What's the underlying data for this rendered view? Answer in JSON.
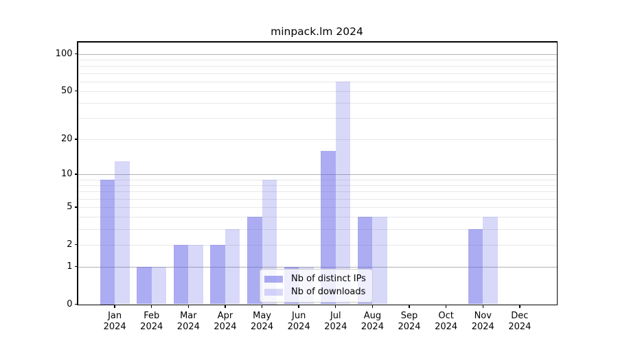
{
  "chart_data": {
    "type": "bar",
    "title": "minpack.lm 2024",
    "xlabel": "",
    "ylabel": "",
    "categories": [
      "Jan",
      "Feb",
      "Mar",
      "Apr",
      "May",
      "Jun",
      "Jul",
      "Aug",
      "Sep",
      "Oct",
      "Nov",
      "Dec"
    ],
    "year": "2024",
    "series": [
      {
        "name": "Nb of distinct IPs",
        "slug": "distinct-ips",
        "color": "rgba(90,90,230,0.5)",
        "values": [
          9,
          1,
          2,
          2,
          4,
          1,
          16,
          4,
          0,
          0,
          3,
          0
        ]
      },
      {
        "name": "Nb of downloads",
        "slug": "downloads",
        "color": "rgba(90,90,230,0.24)",
        "values": [
          13,
          1,
          2,
          3,
          9,
          1,
          60,
          4,
          0,
          0,
          4,
          0
        ]
      }
    ],
    "yscale": "log1p",
    "ylim": [
      0,
      125
    ],
    "yticks": [
      0,
      1,
      2,
      5,
      10,
      20,
      50,
      100
    ],
    "ygrid_major": [
      1,
      10,
      100
    ],
    "ygrid_minor": [
      2,
      3,
      4,
      5,
      6,
      7,
      8,
      9,
      20,
      30,
      40,
      50,
      60,
      70,
      80,
      90
    ],
    "grid": "both",
    "legend_position": "lower center",
    "colors": {
      "grid_major": "#b0b0b0",
      "grid_minor": "#e7e7e7",
      "spine": "#000000",
      "text": "#000000",
      "legend_border": "#cccccc"
    }
  }
}
